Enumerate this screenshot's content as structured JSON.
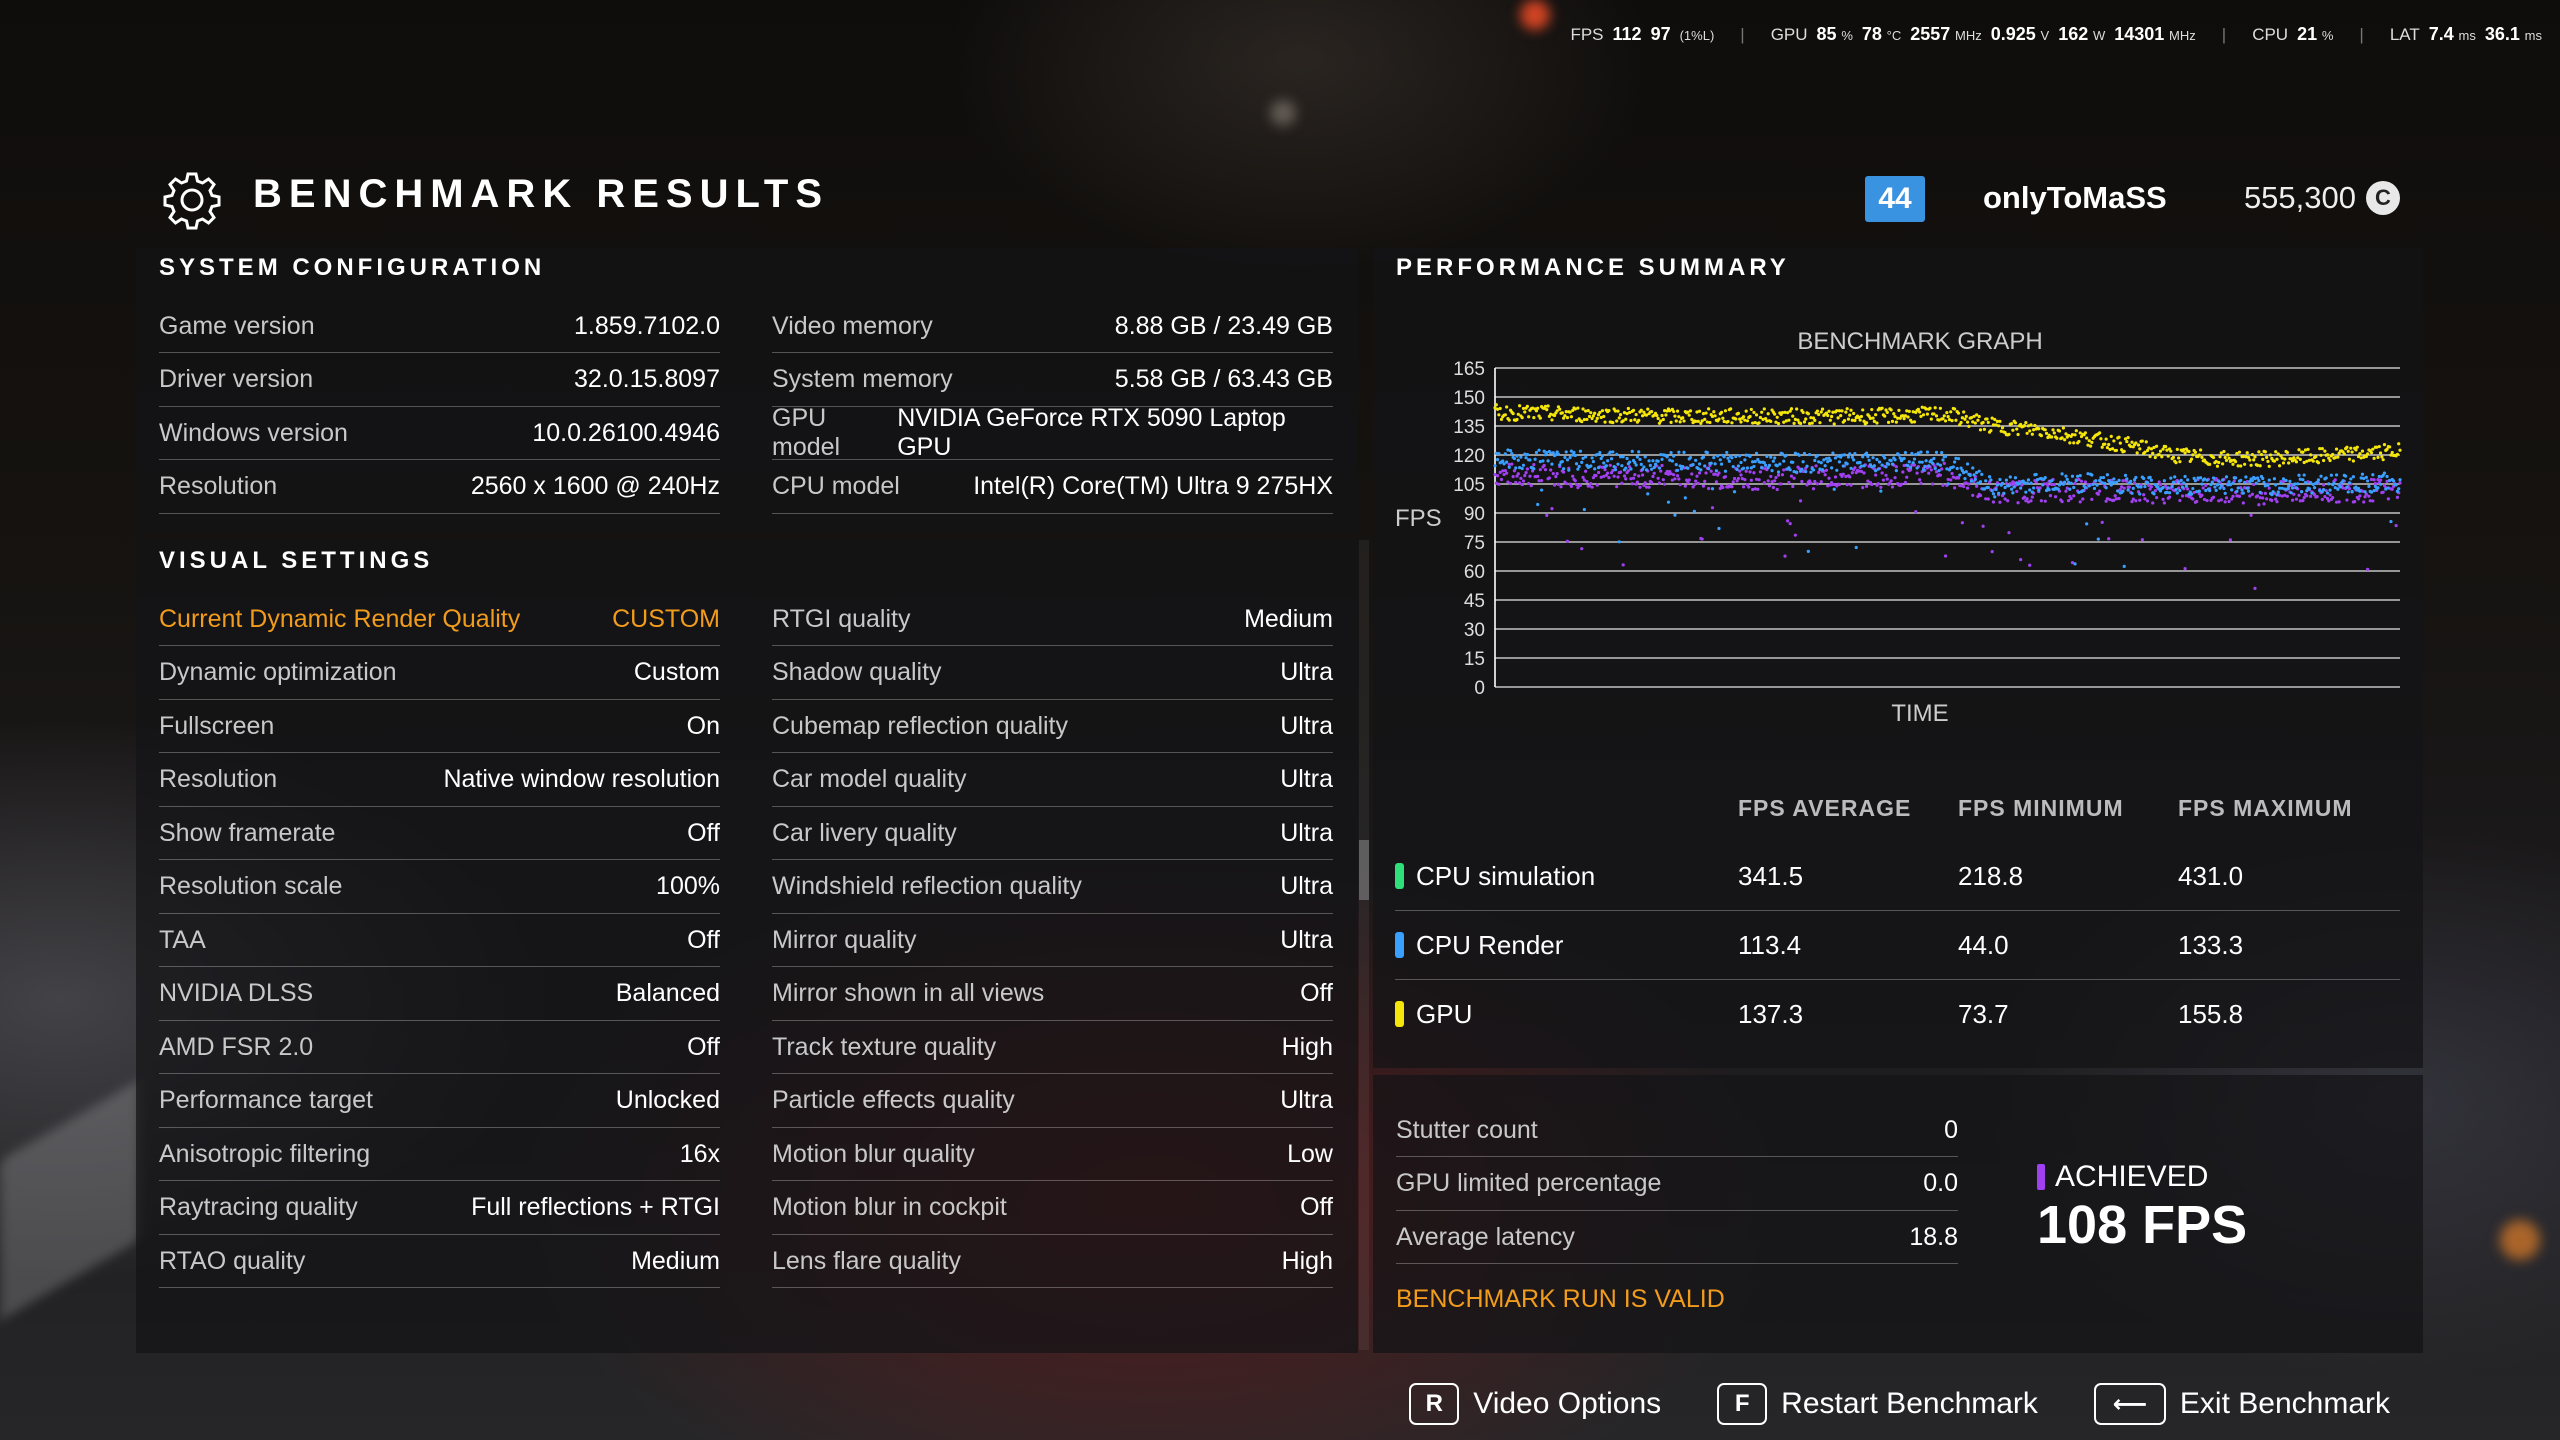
{
  "hud": {
    "fps_label": "FPS",
    "fps": "112",
    "fps_low": "97",
    "fps_low_tag": "(1%L)",
    "gpu_label": "GPU",
    "gpu_load": "85",
    "gpu_load_unit": "%",
    "gpu_temp": "78",
    "gpu_temp_unit": "°C",
    "gpu_clock": "2557",
    "gpu_clock_unit": "MHz",
    "gpu_volt": "0.925",
    "gpu_volt_unit": "V",
    "gpu_power": "162",
    "gpu_power_unit": "W",
    "mem_clock": "14301",
    "mem_clock_unit": "MHz",
    "cpu_label": "CPU",
    "cpu_load": "21",
    "cpu_load_unit": "%",
    "lat_label": "LAT",
    "lat1": "7.4",
    "lat1_unit": "ms",
    "lat2": "36.1",
    "lat2_unit": "ms"
  },
  "header": {
    "title": "BENCHMARK RESULTS",
    "level": "44",
    "username": "onlyToMaSS",
    "credits": "555,300",
    "credit_symbol": "C"
  },
  "system": {
    "heading": "SYSTEM CONFIGURATION",
    "left": [
      {
        "k": "Game version",
        "v": "1.859.7102.0"
      },
      {
        "k": "Driver version",
        "v": "32.0.15.8097"
      },
      {
        "k": "Windows version",
        "v": "10.0.26100.4946"
      },
      {
        "k": "Resolution",
        "v": "2560 x 1600 @ 240Hz"
      }
    ],
    "right": [
      {
        "k": "Video memory",
        "v": "8.88 GB / 23.49 GB"
      },
      {
        "k": "System memory",
        "v": "5.58 GB / 63.43 GB"
      },
      {
        "k": "GPU model",
        "v": "NVIDIA GeForce RTX 5090 Laptop GPU"
      },
      {
        "k": "CPU model",
        "v": "Intel(R) Core(TM) Ultra 9 275HX"
      }
    ]
  },
  "visual": {
    "heading": "VISUAL SETTINGS",
    "left": [
      {
        "k": "Current Dynamic Render Quality",
        "v": "CUSTOM"
      },
      {
        "k": "Dynamic optimization",
        "v": "Custom"
      },
      {
        "k": "Fullscreen",
        "v": "On"
      },
      {
        "k": "Resolution",
        "v": "Native window resolution"
      },
      {
        "k": "Show framerate",
        "v": "Off"
      },
      {
        "k": "Resolution scale",
        "v": "100%"
      },
      {
        "k": "TAA",
        "v": "Off"
      },
      {
        "k": "NVIDIA DLSS",
        "v": "Balanced"
      },
      {
        "k": "AMD FSR 2.0",
        "v": "Off"
      },
      {
        "k": "Performance target",
        "v": "Unlocked"
      },
      {
        "k": "Anisotropic filtering",
        "v": "16x"
      },
      {
        "k": "Raytracing quality",
        "v": "Full reflections + RTGI"
      },
      {
        "k": "RTAO quality",
        "v": "Medium"
      }
    ],
    "right": [
      {
        "k": "RTGI quality",
        "v": "Medium"
      },
      {
        "k": "Shadow quality",
        "v": "Ultra"
      },
      {
        "k": "Cubemap reflection quality",
        "v": "Ultra"
      },
      {
        "k": "Car model quality",
        "v": "Ultra"
      },
      {
        "k": "Car livery quality",
        "v": "Ultra"
      },
      {
        "k": "Windshield reflection quality",
        "v": "Ultra"
      },
      {
        "k": "Mirror quality",
        "v": "Ultra"
      },
      {
        "k": "Mirror shown in all views",
        "v": "Off"
      },
      {
        "k": "Track texture quality",
        "v": "High"
      },
      {
        "k": "Particle effects quality",
        "v": "Ultra"
      },
      {
        "k": "Motion blur quality",
        "v": "Low"
      },
      {
        "k": "Motion blur in cockpit",
        "v": "Off"
      },
      {
        "k": "Lens flare quality",
        "v": "High"
      }
    ]
  },
  "performance": {
    "heading": "PERFORMANCE SUMMARY",
    "col_headers": [
      "FPS AVERAGE",
      "FPS MINIMUM",
      "FPS MAXIMUM"
    ],
    "rows": [
      {
        "name": "CPU simulation",
        "color": "#2fe07a",
        "avg": "341.5",
        "min": "218.8",
        "max": "431.0"
      },
      {
        "name": "CPU Render",
        "color": "#3aa0ff",
        "avg": "113.4",
        "min": "44.0",
        "max": "133.3"
      },
      {
        "name": "GPU",
        "color": "#f5e60a",
        "avg": "137.3",
        "min": "73.7",
        "max": "155.8"
      }
    ],
    "stats": [
      {
        "k": "Stutter count",
        "v": "0"
      },
      {
        "k": "GPU limited percentage",
        "v": "0.0"
      },
      {
        "k": "Average latency",
        "v": "18.8"
      }
    ],
    "valid_text": "BENCHMARK RUN IS VALID",
    "achieved_label": "ACHIEVED",
    "achieved_value": "108 FPS",
    "achieved_color": "#a040f0"
  },
  "chart_data": {
    "type": "scatter",
    "title": "BENCHMARK GRAPH",
    "xlabel": "TIME",
    "ylabel": "FPS",
    "ylim": [
      0,
      165
    ],
    "yticks": [
      0,
      15,
      30,
      45,
      60,
      75,
      90,
      105,
      120,
      135,
      150,
      165
    ],
    "x": [
      0,
      0.1,
      0.2,
      0.3,
      0.4,
      0.5,
      0.55,
      0.6,
      0.7,
      0.75,
      0.8,
      0.85,
      0.9,
      1.0
    ],
    "series": [
      {
        "name": "GPU",
        "color": "#f5e60a",
        "values": [
          142,
          141,
          140,
          140,
          140,
          141,
          135,
          133,
          125,
          120,
          118,
          118,
          119,
          122
        ]
      },
      {
        "name": "CPU Render",
        "color": "#3aa0ff",
        "values": [
          118,
          117,
          117,
          116,
          116,
          117,
          103,
          106,
          105,
          104,
          105,
          104,
          105,
          106
        ]
      },
      {
        "name": "ACHIEVED",
        "color": "#a040f0",
        "values": [
          110,
          109,
          109,
          108,
          109,
          110,
          100,
          102,
          101,
          101,
          102,
          100,
          101,
          102
        ]
      }
    ]
  },
  "buttons": [
    {
      "key": "R",
      "label": "Video Options"
    },
    {
      "key": "F",
      "label": "Restart Benchmark"
    },
    {
      "key": "⟵",
      "label": "Exit Benchmark"
    }
  ]
}
